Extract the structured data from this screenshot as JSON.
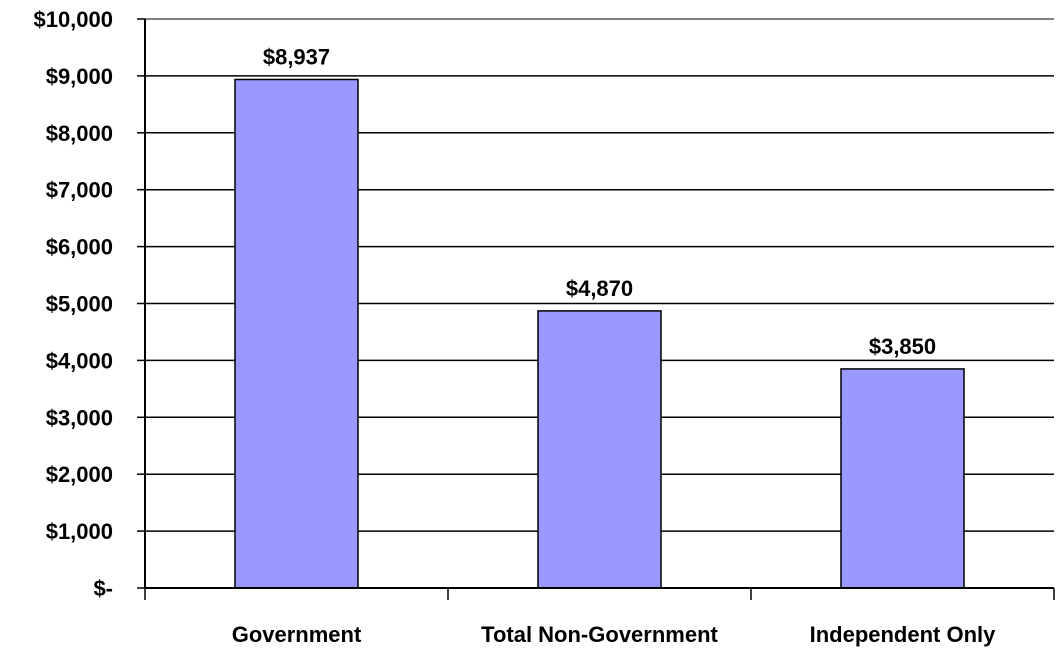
{
  "chart_data": {
    "type": "bar",
    "categories": [
      "Government",
      "Total Non-Government",
      "Independent Only"
    ],
    "values": [
      8937,
      4870,
      3850
    ],
    "value_labels": [
      "$8,937",
      "$4,870",
      "$3,850"
    ],
    "ylim": [
      0,
      10000
    ],
    "yticks": [
      0,
      1000,
      2000,
      3000,
      4000,
      5000,
      6000,
      7000,
      8000,
      9000,
      10000
    ],
    "ytick_labels": [
      "$-",
      "$1,000",
      "$2,000",
      "$3,000",
      "$4,000",
      "$5,000",
      "$6,000",
      "$7,000",
      "$8,000",
      "$9,000",
      "$10,000"
    ],
    "grid": true,
    "legend": "none",
    "colors": {
      "bar_fill": "#9999ff",
      "bar_stroke": "#000000",
      "gridline": "#000000",
      "axis": "#000000"
    }
  }
}
